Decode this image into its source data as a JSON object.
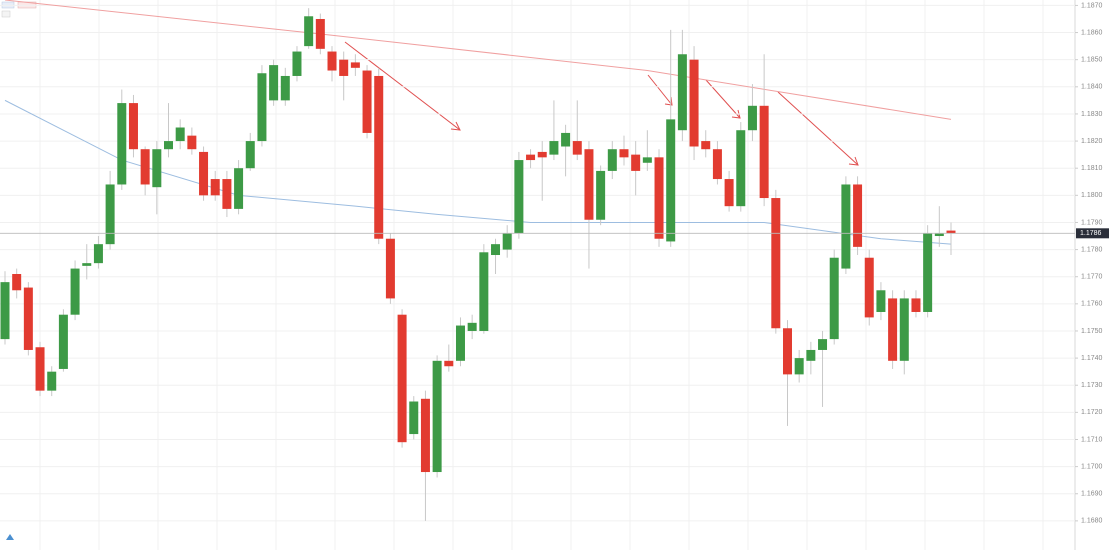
{
  "chart_data": {
    "type": "candlestick",
    "open": [
      1.1747,
      1.1771,
      1.1766,
      1.1744,
      1.1728,
      1.1736,
      1.1756,
      1.1774,
      1.1775,
      1.1782,
      1.1804,
      1.1834,
      1.1817,
      1.1803,
      1.1817,
      1.182,
      1.1822,
      1.1816,
      1.1806,
      1.1806,
      1.1795,
      1.181,
      1.182,
      1.1835,
      1.1835,
      1.1844,
      1.1855,
      1.1865,
      1.1853,
      1.185,
      1.1849,
      1.1846,
      1.1844,
      1.1784,
      1.1756,
      1.1712,
      1.1725,
      1.1698,
      1.1739,
      1.1739,
      1.175,
      1.175,
      1.1778,
      1.178,
      1.1786,
      1.1815,
      1.1816,
      1.1815,
      1.1818,
      1.182,
      1.1817,
      1.1791,
      1.1809,
      1.1817,
      1.1815,
      1.1812,
      1.1814,
      1.1783,
      1.1824,
      1.185,
      1.182,
      1.1817,
      1.1806,
      1.1796,
      1.1824,
      1.1833,
      1.1799,
      1.1751,
      1.1734,
      1.1739,
      1.1743,
      1.1747,
      1.1773,
      1.1804,
      1.1777,
      1.1757,
      1.1762,
      1.1739,
      1.1762,
      1.1757,
      1.1785,
      1.1787
    ],
    "high": [
      1.1772,
      1.1773,
      1.1768,
      1.1746,
      1.1737,
      1.1758,
      1.1776,
      1.1782,
      1.1785,
      1.1809,
      1.1839,
      1.1837,
      1.1818,
      1.182,
      1.1834,
      1.1828,
      1.1825,
      1.1818,
      1.1809,
      1.1809,
      1.1813,
      1.1823,
      1.1848,
      1.185,
      1.1847,
      1.1855,
      1.1869,
      1.1867,
      1.1855,
      1.1853,
      1.1852,
      1.1848,
      1.1847,
      1.1786,
      1.1758,
      1.1726,
      1.1728,
      1.1741,
      1.1745,
      1.1755,
      1.1756,
      1.1782,
      1.1784,
      1.1789,
      1.1816,
      1.1817,
      1.182,
      1.1835,
      1.1826,
      1.1835,
      1.182,
      1.1811,
      1.182,
      1.1822,
      1.182,
      1.1824,
      1.1817,
      1.1861,
      1.1861,
      1.1855,
      1.1824,
      1.182,
      1.1809,
      1.1827,
      1.1841,
      1.1852,
      1.1802,
      1.1754,
      1.1743,
      1.1746,
      1.175,
      1.178,
      1.1807,
      1.1807,
      1.178,
      1.1768,
      1.1765,
      1.1765,
      1.1765,
      1.1789,
      1.1796,
      1.179
    ],
    "low": [
      1.1745,
      1.1762,
      1.1741,
      1.1726,
      1.1726,
      1.1735,
      1.1754,
      1.1769,
      1.1773,
      1.178,
      1.1802,
      1.1814,
      1.18,
      1.1793,
      1.1814,
      1.1817,
      1.1815,
      1.1798,
      1.1798,
      1.1792,
      1.1793,
      1.1809,
      1.1818,
      1.1833,
      1.1833,
      1.1842,
      1.1854,
      1.1852,
      1.1842,
      1.1835,
      1.1844,
      1.1821,
      1.1782,
      1.176,
      1.1707,
      1.171,
      1.168,
      1.1696,
      1.1735,
      1.1737,
      1.1747,
      1.1749,
      1.1771,
      1.1777,
      1.1784,
      1.181,
      1.1798,
      1.1813,
      1.1807,
      1.1813,
      1.1773,
      1.1789,
      1.1806,
      1.1811,
      1.18,
      1.1809,
      1.1781,
      1.1781,
      1.182,
      1.1813,
      1.1814,
      1.1804,
      1.1794,
      1.1794,
      1.182,
      1.1796,
      1.1749,
      1.1715,
      1.1731,
      1.1734,
      1.1722,
      1.1745,
      1.1771,
      1.1778,
      1.1752,
      1.1754,
      1.1736,
      1.1734,
      1.1755,
      1.1755,
      1.1781,
      1.1778
    ],
    "close": [
      1.1768,
      1.1765,
      1.1743,
      1.1728,
      1.1735,
      1.1756,
      1.1773,
      1.1775,
      1.1782,
      1.1804,
      1.1834,
      1.1817,
      1.1804,
      1.1817,
      1.182,
      1.1825,
      1.1817,
      1.18,
      1.18,
      1.1795,
      1.181,
      1.182,
      1.1845,
      1.1848,
      1.1844,
      1.1853,
      1.1866,
      1.1854,
      1.1846,
      1.1844,
      1.1847,
      1.1823,
      1.1784,
      1.1762,
      1.1709,
      1.1724,
      1.1698,
      1.1739,
      1.1737,
      1.1752,
      1.1753,
      1.1779,
      1.1782,
      1.1786,
      1.1813,
      1.1813,
      1.1814,
      1.182,
      1.1823,
      1.1815,
      1.1791,
      1.1809,
      1.1817,
      1.1814,
      1.1809,
      1.1814,
      1.1784,
      1.1828,
      1.1852,
      1.1818,
      1.1817,
      1.1806,
      1.1796,
      1.1824,
      1.1833,
      1.1799,
      1.1751,
      1.1734,
      1.174,
      1.1743,
      1.1747,
      1.1777,
      1.1804,
      1.1781,
      1.1755,
      1.1765,
      1.1739,
      1.1762,
      1.1757,
      1.1786,
      1.1786,
      1.1786
    ],
    "up_color": "#3d9a46",
    "down_color": "#e23b30",
    "overlays": [
      {
        "color": "#9dbde0",
        "x": [
          0,
          10,
          20,
          30,
          37,
          45,
          65,
          75,
          81
        ],
        "values": [
          1.1835,
          1.1813,
          1.18,
          1.1796,
          1.1793,
          1.179,
          1.179,
          1.1784,
          1.1782
        ]
      },
      {
        "color": "#f0a0a0",
        "x": [
          0,
          28,
          55,
          81
        ],
        "values": [
          1.1872,
          1.1859,
          1.1846,
          1.1828
        ]
      }
    ],
    "price_label": "1.1786",
    "price_line": 1.1786,
    "ylim": [
      1.167,
      1.1872
    ],
    "yticks": [
      {
        "value": 1.168,
        "label": "1.1680"
      },
      {
        "value": 1.169,
        "label": "1.1690"
      },
      {
        "value": 1.17,
        "label": "1.1700"
      },
      {
        "value": 1.171,
        "label": "1.1710"
      },
      {
        "value": 1.172,
        "label": "1.1720"
      },
      {
        "value": 1.173,
        "label": "1.1730"
      },
      {
        "value": 1.174,
        "label": "1.1740"
      },
      {
        "value": 1.175,
        "label": "1.1750"
      },
      {
        "value": 1.176,
        "label": "1.1760"
      },
      {
        "value": 1.177,
        "label": "1.1770"
      },
      {
        "value": 1.178,
        "label": "1.1780"
      },
      {
        "value": 1.179,
        "label": "1.1790"
      },
      {
        "value": 1.18,
        "label": "1.1800"
      },
      {
        "value": 1.181,
        "label": "1.1810"
      },
      {
        "value": 1.182,
        "label": "1.1820"
      },
      {
        "value": 1.183,
        "label": "1.1830"
      },
      {
        "value": 1.184,
        "label": "1.1840"
      },
      {
        "value": 1.185,
        "label": "1.1850"
      },
      {
        "value": 1.186,
        "label": "1.1860"
      },
      {
        "value": 1.187,
        "label": "1.1870"
      }
    ],
    "grid": true
  }
}
